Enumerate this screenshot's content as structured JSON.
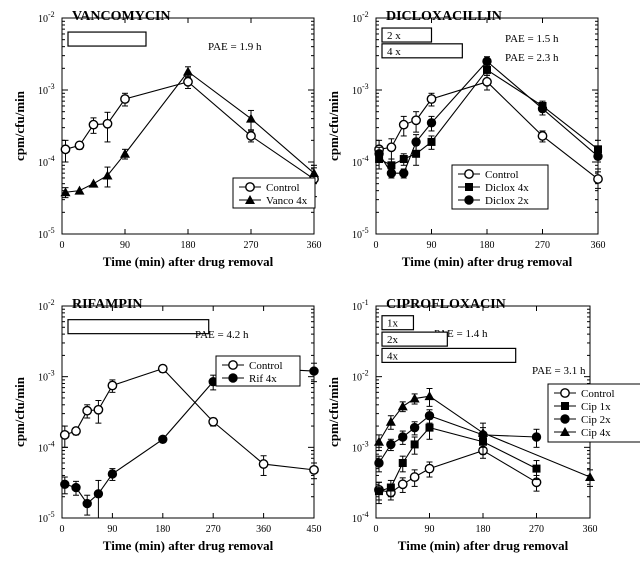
{
  "chart_data": [
    {
      "type": "line",
      "title": "VANCOMYCIN",
      "xlabel": "Time  (min)  after drug removal",
      "ylabel": "cpm/cfu/min",
      "xlim": [
        0,
        360
      ],
      "x_ticks": [
        0,
        90,
        180,
        270,
        360
      ],
      "ylim": [
        1e-05,
        0.01
      ],
      "y_scale": "log",
      "y_ticks": [
        {
          "value": 1e-05,
          "base": "10",
          "exp": "-5"
        },
        {
          "value": 0.0001,
          "base": "10",
          "exp": "-4"
        },
        {
          "value": 0.001,
          "base": "10",
          "exp": "-3"
        },
        {
          "value": 0.01,
          "base": "10",
          "exp": "-2"
        }
      ],
      "grid": false,
      "legend_position": "center-right",
      "pae_bars": [
        {
          "label": "",
          "annotation": "PAE = 1.9 h",
          "end": 120,
          "level": 0.0051
        }
      ],
      "series": [
        {
          "name": "Control",
          "marker": "circle-open",
          "x": [
            5,
            25,
            45,
            65,
            90,
            180,
            270,
            360
          ],
          "y": [
            0.00015,
            0.00017,
            0.00033,
            0.00034,
            0.00075,
            0.0013,
            0.00023,
            5.8e-05
          ],
          "err": [
            5e-05,
            2e-05,
            8e-05,
            0.00015,
            0.00015,
            0.00025,
            4e-05,
            2.5e-05
          ]
        },
        {
          "name": "Vanco 4x",
          "marker": "triangle-filled",
          "x": [
            5,
            25,
            45,
            65,
            90,
            180,
            270,
            360
          ],
          "y": [
            3.8e-05,
            4e-05,
            5e-05,
            6.5e-05,
            0.00013,
            0.0018,
            0.0004,
            7e-05
          ],
          "err": [
            6e-06,
            0,
            0,
            2e-05,
            2e-05,
            0.0003,
            0.00012,
            2e-05
          ]
        }
      ]
    },
    {
      "type": "line",
      "title": "DICLOXACILLIN",
      "xlabel": "Time  (min)  after drug removal",
      "ylabel": "cpm/cfu/min",
      "xlim": [
        0,
        360
      ],
      "x_ticks": [
        0,
        90,
        180,
        270,
        360
      ],
      "ylim": [
        1e-05,
        0.01
      ],
      "y_scale": "log",
      "y_ticks": [
        {
          "value": 1e-05,
          "base": "10",
          "exp": "-5"
        },
        {
          "value": 0.0001,
          "base": "10",
          "exp": "-4"
        },
        {
          "value": 0.001,
          "base": "10",
          "exp": "-3"
        },
        {
          "value": 0.01,
          "base": "10",
          "exp": "-2"
        }
      ],
      "grid": false,
      "legend_position": "lower-right",
      "pae_bars": [
        {
          "label": "2 x",
          "annotation": "PAE = 1.5 h",
          "end": 90,
          "level": 0.0058
        },
        {
          "label": "4 x",
          "annotation": "PAE = 2.3 h",
          "end": 140,
          "level": 0.0035
        }
      ],
      "series": [
        {
          "name": "Control",
          "marker": "circle-open",
          "x": [
            5,
            25,
            45,
            65,
            90,
            180,
            270,
            360
          ],
          "y": [
            0.00015,
            0.00016,
            0.00033,
            0.00038,
            0.00075,
            0.0013,
            0.00023,
            5.8e-05
          ],
          "err": [
            5e-05,
            5e-05,
            0.0001,
            0.00012,
            0.00015,
            0.0003,
            4e-05,
            1.5e-05
          ]
        },
        {
          "name": "Diclox 4x",
          "marker": "square-filled",
          "x": [
            5,
            25,
            45,
            65,
            90,
            180,
            270,
            360
          ],
          "y": [
            0.00011,
            9e-05,
            0.00011,
            0.00013,
            0.00019,
            0.0019,
            0.0006,
            0.00015
          ],
          "err": [
            3e-05,
            2e-05,
            2e-05,
            4e-05,
            4e-05,
            0.0003,
            0.0001,
            5e-05
          ]
        },
        {
          "name": "Diclox 2x",
          "marker": "circle-filled",
          "x": [
            5,
            25,
            45,
            65,
            90,
            180,
            270,
            360
          ],
          "y": [
            0.00013,
            7e-05,
            7e-05,
            0.00019,
            0.00035,
            0.0025,
            0.00055,
            0.00012
          ],
          "err": [
            3e-05,
            1e-05,
            1e-05,
            5e-05,
            8e-05,
            0.0004,
            0.0001,
            4e-05
          ]
        }
      ]
    },
    {
      "type": "line",
      "title": "RIFAMPIN",
      "xlabel": "Time  (min)  after drug removal",
      "ylabel": "cpm/cfu/min",
      "xlim": [
        0,
        450
      ],
      "x_ticks": [
        0,
        90,
        180,
        270,
        360,
        450
      ],
      "ylim": [
        1e-05,
        0.01
      ],
      "y_scale": "log",
      "y_ticks": [
        {
          "value": 1e-05,
          "base": "10",
          "exp": "-5"
        },
        {
          "value": 0.0001,
          "base": "10",
          "exp": "-4"
        },
        {
          "value": 0.001,
          "base": "10",
          "exp": "-3"
        },
        {
          "value": 0.01,
          "base": "10",
          "exp": "-2"
        }
      ],
      "grid": false,
      "legend_position": "right",
      "pae_bars": [
        {
          "label": "",
          "annotation": "PAE = 4.2 h",
          "end": 262,
          "level": 0.0051
        }
      ],
      "series": [
        {
          "name": "Control",
          "marker": "circle-open",
          "x": [
            5,
            25,
            45,
            65,
            90,
            180,
            270,
            360,
            450
          ],
          "y": [
            0.00015,
            0.00017,
            0.00033,
            0.00034,
            0.00075,
            0.0013,
            0.00023,
            5.8e-05,
            4.8e-05
          ],
          "err": [
            5e-05,
            2e-05,
            7e-05,
            0.00012,
            0.00015,
            0.00015,
            3e-05,
            1.8e-05,
            1.2e-05
          ]
        },
        {
          "name": "Rif 4x",
          "marker": "circle-filled",
          "x": [
            5,
            25,
            45,
            65,
            90,
            180,
            270,
            360,
            450
          ],
          "y": [
            3e-05,
            2.7e-05,
            1.6e-05,
            2.2e-05,
            4.2e-05,
            0.00013,
            0.00085,
            0.0013,
            0.0012
          ],
          "err": [
            8e-06,
            6e-06,
            5e-06,
            1.2e-05,
            8e-06,
            0,
            0.0002,
            0.00025,
            0.00035
          ]
        }
      ]
    },
    {
      "type": "line",
      "title": "CIPROFLOXACIN",
      "xlabel": "Time  (min)  after drug removal",
      "ylabel": "cpm/cfu/min",
      "xlim": [
        0,
        360
      ],
      "x_ticks": [
        0,
        90,
        180,
        270,
        360
      ],
      "ylim": [
        0.0001,
        0.1
      ],
      "y_scale": "log",
      "y_ticks": [
        {
          "value": 0.0001,
          "base": "10",
          "exp": "-4"
        },
        {
          "value": 0.001,
          "base": "10",
          "exp": "-3"
        },
        {
          "value": 0.01,
          "base": "10",
          "exp": "-2"
        },
        {
          "value": 0.1,
          "base": "10",
          "exp": "-1"
        }
      ],
      "grid": false,
      "legend_position": "right",
      "pae_bars": [
        {
          "label": "1x",
          "annotation": "PAE = 1.4 h",
          "end": 63,
          "level": 0.058
        },
        {
          "label": "2x",
          "annotation": "PAE = 1.5 h",
          "end": 120,
          "level": 0.034
        },
        {
          "label": "4x",
          "annotation": "PAE = 3.1 h",
          "end": 235,
          "level": 0.02
        }
      ],
      "series": [
        {
          "name": "Control",
          "marker": "circle-open",
          "x": [
            5,
            25,
            45,
            65,
            90,
            180,
            270
          ],
          "y": [
            0.00025,
            0.00023,
            0.0003,
            0.00038,
            0.0005,
            0.0009,
            0.00032
          ],
          "err": [
            7e-05,
            5e-05,
            7e-05,
            0.0001,
            0.00012,
            0.0002,
            8e-05
          ]
        },
        {
          "name": "Cip 1x",
          "marker": "square-filled",
          "x": [
            5,
            25,
            45,
            65,
            90,
            180,
            270
          ],
          "y": [
            0.00024,
            0.00027,
            0.0006,
            0.0011,
            0.0019,
            0.0012,
            0.0005
          ],
          "err": [
            8e-05,
            7e-05,
            0.00015,
            0.0003,
            0.0006,
            0.0004,
            0.00015
          ]
        },
        {
          "name": "Cip 2x",
          "marker": "circle-filled",
          "x": [
            5,
            25,
            45,
            65,
            90,
            180,
            270
          ],
          "y": [
            0.0006,
            0.0011,
            0.0014,
            0.0019,
            0.0028,
            0.0015,
            0.0014
          ],
          "err": [
            0.00015,
            0.0002,
            0.0003,
            0.0004,
            0.0006,
            0.0004,
            0.0004
          ]
        },
        {
          "name": "Cip 4x",
          "marker": "triangle-filled",
          "x": [
            5,
            25,
            45,
            65,
            90,
            180,
            360
          ],
          "y": [
            0.0012,
            0.0023,
            0.0038,
            0.0049,
            0.0053,
            0.0016,
            0.00038
          ],
          "err": [
            0.0003,
            0.0005,
            0.0006,
            0.0008,
            0.0015,
            0.0006,
            0.0001
          ]
        }
      ]
    }
  ]
}
